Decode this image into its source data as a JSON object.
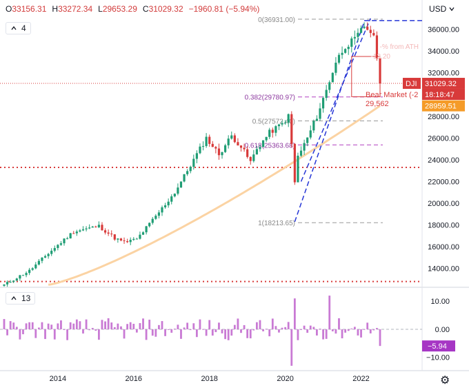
{
  "header": {
    "ohlc": [
      {
        "label": "O",
        "value": "33156.31"
      },
      {
        "label": "H",
        "value": "33272.34"
      },
      {
        "label": "L",
        "value": "29653.29"
      },
      {
        "label": "C",
        "value": "31029.32"
      },
      {
        "label": "",
        "value": "−1960.81 (−5.94%)"
      }
    ],
    "currency": "USD"
  },
  "price_legend": "4",
  "osc_legend": "13",
  "colors": {
    "up": "#1f9d74",
    "down": "#d83a3a",
    "ma": "#fbd3a3",
    "fib": "#c97ad4",
    "trend": "#2535d6",
    "osc": "#c97ad4"
  },
  "price_axis": {
    "ticks": [
      "36000.00",
      "34000.00",
      "32000.00",
      "30000.00",
      "28000.00",
      "26000.00",
      "24000.00",
      "22000.00",
      "20000.00",
      "18000.00",
      "16000.00",
      "14000.00"
    ],
    "symbol_tag": "DJI",
    "last_price": "31029.32",
    "countdown": "18:18:47",
    "ma_price": "28959.51"
  },
  "osc_axis": {
    "ticks": [
      "10.00",
      "0.00",
      "−10.00"
    ],
    "last_value": "−5.94"
  },
  "time_axis": {
    "ticks": [
      "2014",
      "2016",
      "2018",
      "2020",
      "2022"
    ]
  },
  "fib_levels": [
    {
      "label": "0(36931.00)"
    },
    {
      "label": "0.382(29780.97)"
    },
    {
      "label": "0.5(27572.40)"
    },
    {
      "label": "0.618(25363.68)"
    },
    {
      "label": "1(18213.65)"
    }
  ],
  "annotations": {
    "from_ath": "-% from ATH",
    "from_ath_value": "-13.20",
    "bear_market": "Bear Market (-2",
    "bear_level": "29,562"
  },
  "chart_data": {
    "type": "candlestick",
    "symbol": "DJI",
    "interval": "monthly",
    "y_range": [
      12400,
      37300
    ],
    "osc_range": [
      -14,
      13
    ],
    "moving_average_period": 4,
    "oscillator_period": 13,
    "fib_retracement": [
      {
        "level": 0,
        "price": 36931.0
      },
      {
        "level": 0.382,
        "price": 29780.97
      },
      {
        "level": 0.5,
        "price": 27572.4
      },
      {
        "level": 0.618,
        "price": 25363.68
      },
      {
        "level": 1,
        "price": 18213.65
      }
    ],
    "horizontal_lines": [
      23300,
      12800
    ],
    "last_close": 31029.32,
    "moving_average_last": 28959.51,
    "bear_market_level": 29562,
    "oscillator_last": -5.94
  }
}
